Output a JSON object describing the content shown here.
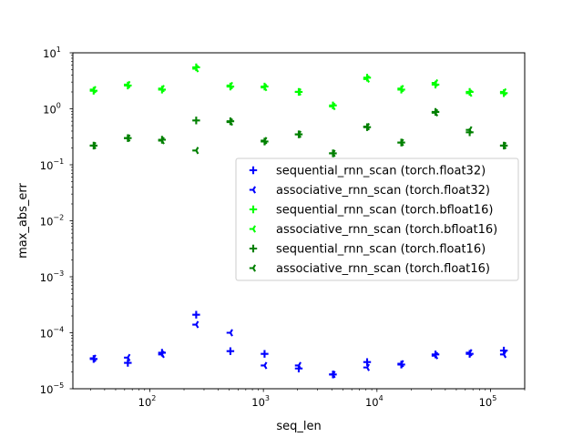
{
  "chart_data": {
    "type": "scatter",
    "title": "",
    "xlabel": "seq_len",
    "ylabel": "max_abs_err",
    "xscale": "log",
    "yscale": "log",
    "xlim": [
      21,
      200000
    ],
    "ylim": [
      1e-05,
      10
    ],
    "x_ticks": [
      {
        "value": 100,
        "base": "10",
        "exp": "2"
      },
      {
        "value": 1000,
        "base": "10",
        "exp": "3"
      },
      {
        "value": 10000,
        "base": "10",
        "exp": "4"
      },
      {
        "value": 100000,
        "base": "10",
        "exp": "5"
      }
    ],
    "y_ticks": [
      {
        "value": 1e-05,
        "base": "10",
        "exp": "−5"
      },
      {
        "value": 0.0001,
        "base": "10",
        "exp": "−4"
      },
      {
        "value": 0.001,
        "base": "10",
        "exp": "−3"
      },
      {
        "value": 0.01,
        "base": "10",
        "exp": "−2"
      },
      {
        "value": 0.1,
        "base": "10",
        "exp": "−1"
      },
      {
        "value": 1,
        "base": "10",
        "exp": "0"
      },
      {
        "value": 10,
        "base": "10",
        "exp": "1"
      }
    ],
    "grid": false,
    "legend_position": "center-right",
    "x": [
      32,
      64,
      128,
      256,
      512,
      1024,
      2048,
      4096,
      8192,
      16384,
      32768,
      65536,
      131072
    ],
    "series": [
      {
        "name": "sequential_rnn_scan (torch.float32)",
        "color": "#0000ff",
        "marker": "plus",
        "values": [
          3.4e-05,
          2.9e-05,
          4.4e-05,
          0.00021,
          4.7e-05,
          4.2e-05,
          2.3e-05,
          1.8e-05,
          3e-05,
          2.7e-05,
          4.1e-05,
          4.2e-05,
          4.8e-05
        ]
      },
      {
        "name": "associative_rnn_scan (torch.float32)",
        "color": "#0000ff",
        "marker": "tri_left",
        "values": [
          3.5e-05,
          3.6e-05,
          4.1e-05,
          0.00014,
          0.0001,
          2.6e-05,
          2.6e-05,
          1.8e-05,
          2.4e-05,
          2.8e-05,
          3.9e-05,
          4.4e-05,
          4.1e-05
        ]
      },
      {
        "name": "sequential_rnn_scan (torch.bfloat16)",
        "color": "#00ff00",
        "marker": "plus",
        "values": [
          2.1,
          2.6,
          2.2,
          5.5,
          2.5,
          2.5,
          2.0,
          1.15,
          3.6,
          2.2,
          2.7,
          2.0,
          1.9
        ]
      },
      {
        "name": "associative_rnn_scan (torch.bfloat16)",
        "color": "#00ff00",
        "marker": "tri_left",
        "values": [
          2.2,
          2.7,
          2.3,
          5.2,
          2.6,
          2.4,
          2.0,
          1.1,
          3.4,
          2.3,
          2.9,
          1.9,
          2.0
        ]
      },
      {
        "name": "sequential_rnn_scan (torch.float16)",
        "color": "#008000",
        "marker": "plus",
        "values": [
          0.22,
          0.3,
          0.28,
          0.62,
          0.6,
          0.26,
          0.35,
          0.16,
          0.47,
          0.25,
          0.88,
          0.38,
          0.22
        ]
      },
      {
        "name": "associative_rnn_scan (torch.float16)",
        "color": "#008000",
        "marker": "tri_left",
        "values": [
          0.22,
          0.3,
          0.27,
          0.18,
          0.58,
          0.27,
          0.35,
          0.16,
          0.48,
          0.25,
          0.85,
          0.42,
          0.22
        ]
      }
    ]
  }
}
